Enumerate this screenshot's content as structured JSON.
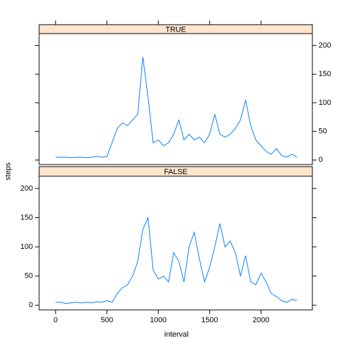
{
  "chart_data": {
    "type": "line",
    "xlabel": "interval",
    "ylabel": "steps",
    "color": "#0080ff",
    "strip_color": "#ffe5cc",
    "xlim": [
      -160,
      2500
    ],
    "ylim": [
      -8,
      221
    ],
    "xticks": [
      0,
      500,
      1000,
      1500,
      2000
    ],
    "yticks": [
      0,
      50,
      100,
      150,
      200
    ],
    "x": [
      0,
      50,
      100,
      150,
      200,
      250,
      300,
      350,
      400,
      450,
      500,
      550,
      600,
      650,
      700,
      750,
      800,
      850,
      900,
      950,
      1000,
      1050,
      1100,
      1150,
      1200,
      1250,
      1300,
      1350,
      1400,
      1450,
      1500,
      1550,
      1600,
      1650,
      1700,
      1750,
      1800,
      1850,
      1900,
      1950,
      2000,
      2050,
      2100,
      2150,
      2200,
      2250,
      2300,
      2350
    ],
    "panels": [
      {
        "strip": "TRUE",
        "values": [
          5,
          5,
          5,
          4,
          5,
          5,
          4,
          5,
          6,
          5,
          6,
          30,
          55,
          65,
          60,
          70,
          80,
          180,
          110,
          30,
          35,
          25,
          30,
          45,
          70,
          35,
          45,
          35,
          40,
          30,
          45,
          80,
          45,
          40,
          45,
          55,
          70,
          105,
          60,
          35,
          25,
          15,
          10,
          20,
          8,
          5,
          10,
          5
        ]
      },
      {
        "strip": "FALSE",
        "values": [
          5,
          5,
          3,
          4,
          5,
          4,
          5,
          4,
          6,
          5,
          8,
          5,
          20,
          30,
          35,
          50,
          75,
          130,
          150,
          60,
          45,
          50,
          40,
          90,
          75,
          40,
          100,
          125,
          80,
          40,
          65,
          100,
          140,
          100,
          110,
          90,
          50,
          85,
          40,
          35,
          55,
          40,
          20,
          15,
          8,
          5,
          10,
          8
        ]
      }
    ]
  }
}
